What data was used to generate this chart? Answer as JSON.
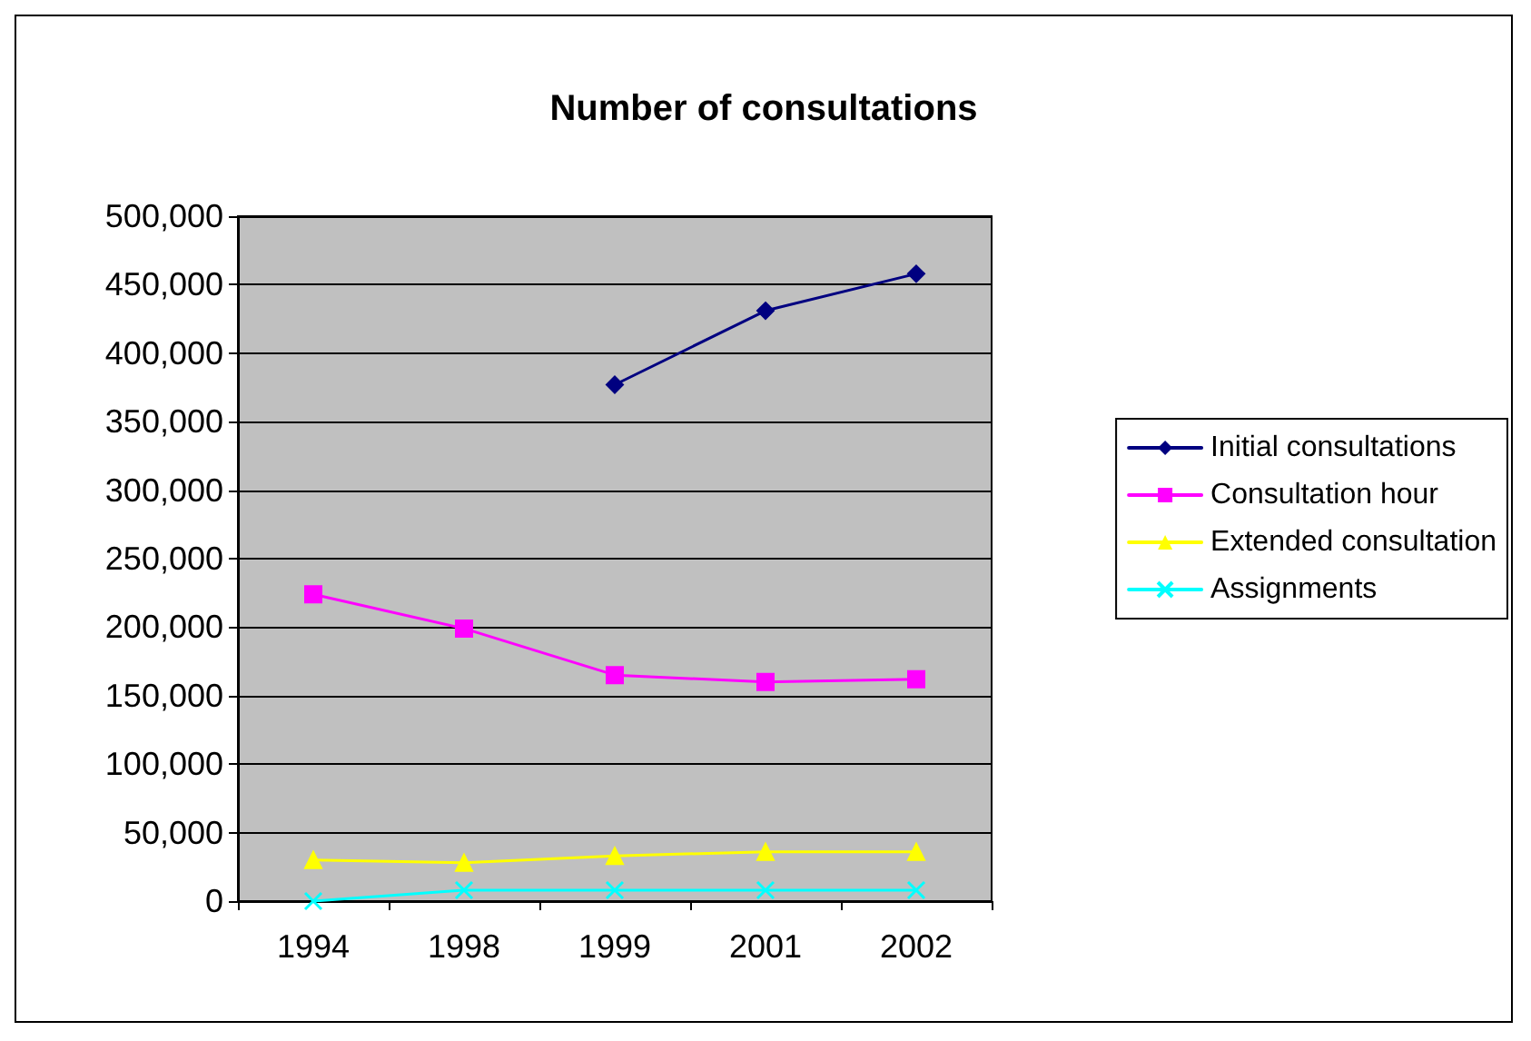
{
  "chart_data": {
    "type": "line",
    "title": "Number of consultations",
    "categories": [
      "1994",
      "1998",
      "1999",
      "2001",
      "2002"
    ],
    "series": [
      {
        "name": "Initial consultations",
        "color": "#000080",
        "marker": "diamond",
        "values": [
          null,
          null,
          377000,
          431000,
          458000
        ]
      },
      {
        "name": "Consultation hour",
        "color": "#ff00ff",
        "marker": "square",
        "values": [
          224000,
          199000,
          165000,
          160000,
          162000
        ]
      },
      {
        "name": "Extended consultation",
        "color": "#ffff00",
        "marker": "triangle",
        "values": [
          30000,
          28000,
          33000,
          36000,
          36000
        ]
      },
      {
        "name": "Assignments",
        "color": "#00ffff",
        "marker": "cross",
        "values": [
          0,
          8000,
          8000,
          8000,
          8000
        ]
      }
    ],
    "ylim": [
      0,
      500000
    ],
    "yticks": [
      {
        "value": 0,
        "label": "0"
      },
      {
        "value": 50000,
        "label": "50,000"
      },
      {
        "value": 100000,
        "label": "100,000"
      },
      {
        "value": 150000,
        "label": "150,000"
      },
      {
        "value": 200000,
        "label": "200,000"
      },
      {
        "value": 250000,
        "label": "250,000"
      },
      {
        "value": 300000,
        "label": "300,000"
      },
      {
        "value": 350000,
        "label": "350,000"
      },
      {
        "value": 400000,
        "label": "400,000"
      },
      {
        "value": 450000,
        "label": "450,000"
      },
      {
        "value": 500000,
        "label": "500,000"
      }
    ],
    "grid": "y",
    "legend": "right"
  }
}
